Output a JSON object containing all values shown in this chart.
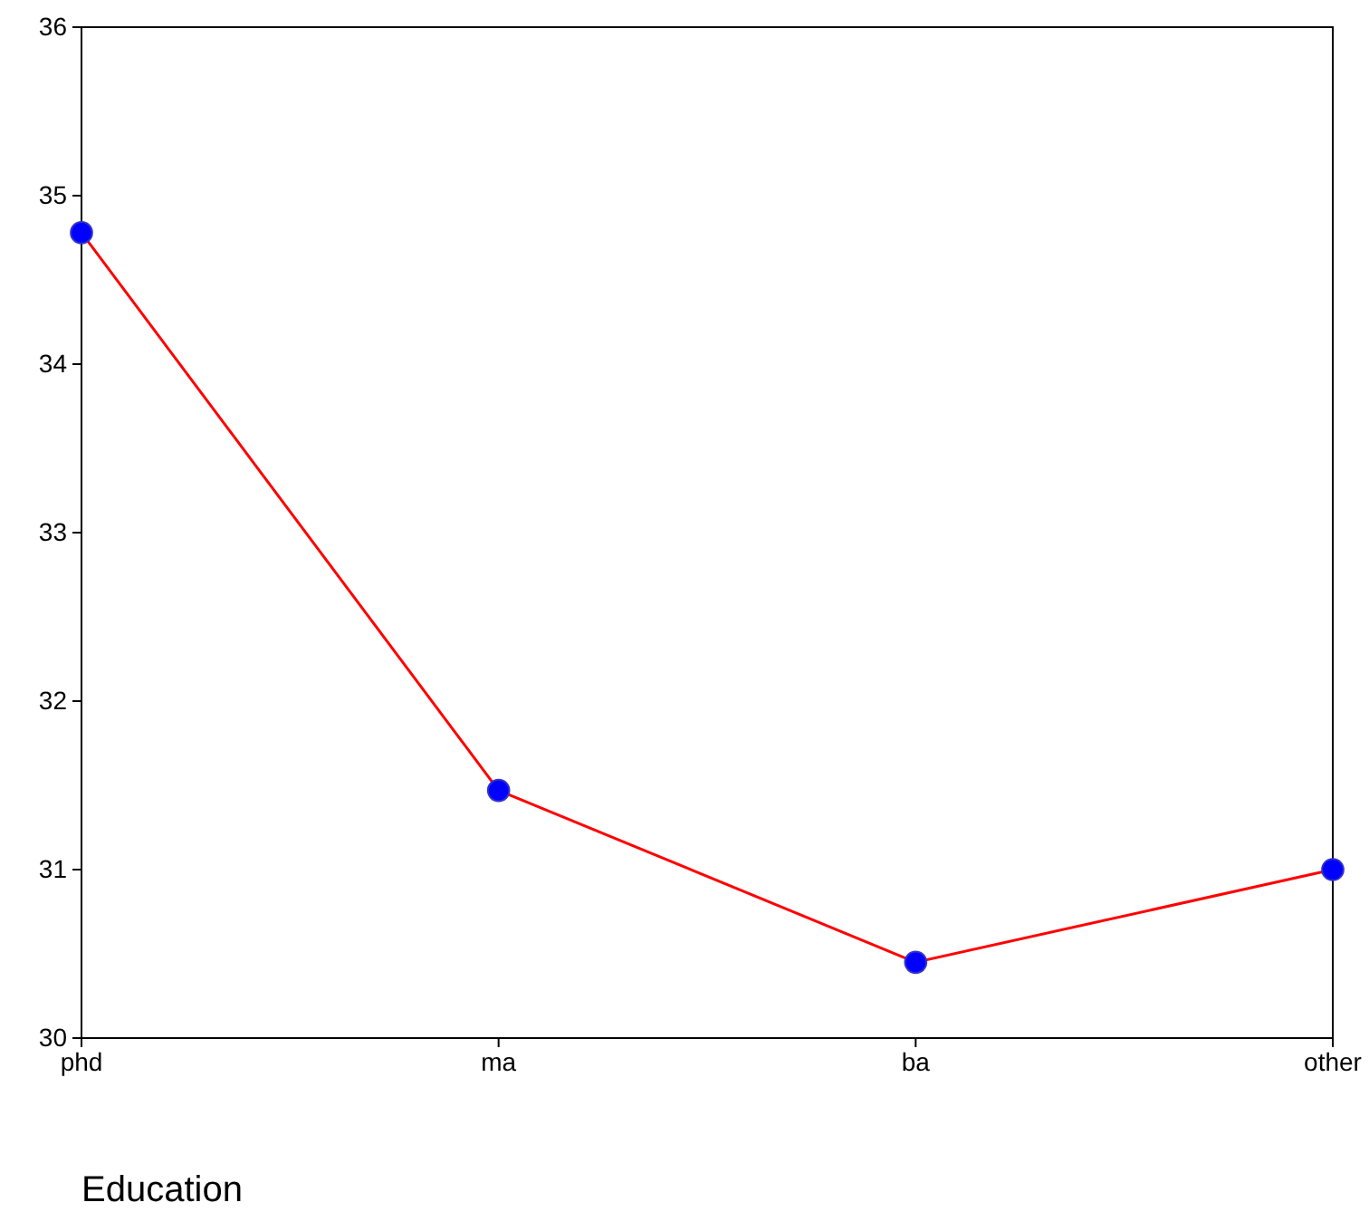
{
  "chart_data": {
    "type": "line",
    "xlabel": "Education",
    "categories": [
      "phd",
      "ma",
      "ba",
      "other"
    ],
    "series": [
      {
        "color": "#ff0000",
        "values": [
          34.78,
          31.47,
          30.45,
          31.0
        ]
      }
    ],
    "marker": "circle",
    "ylim": [
      30,
      36
    ],
    "yticks": [
      30,
      31,
      32,
      33,
      34,
      35,
      36
    ],
    "grid": false
  }
}
